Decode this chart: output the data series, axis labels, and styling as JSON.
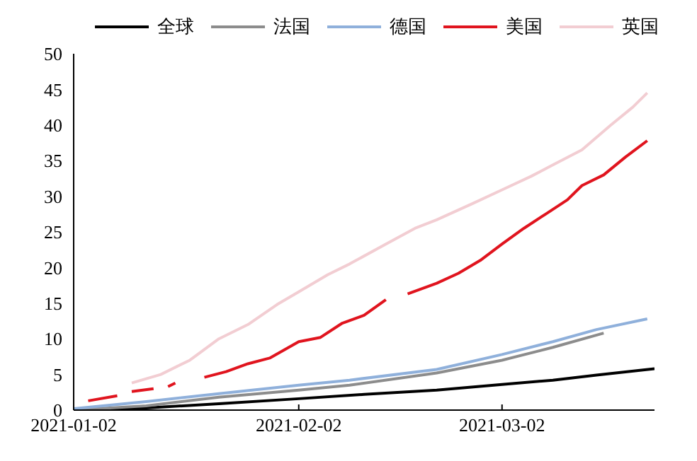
{
  "chart_data": {
    "type": "line",
    "xlim": [
      "2021-01-02",
      "2021-03-23"
    ],
    "xticks": [
      "2021-01-02",
      "2021-02-02",
      "2021-03-02"
    ],
    "ylim": [
      0,
      50
    ],
    "yticks": [
      0,
      5,
      10,
      15,
      20,
      25,
      30,
      35,
      40,
      45,
      50
    ],
    "grid": false,
    "legend": "top",
    "marker": "none",
    "line_style": "solid",
    "series": [
      {
        "name": "全球",
        "color": "#000000",
        "x": [
          "2021-01-02",
          "2021-01-12",
          "2021-01-22",
          "2021-02-02",
          "2021-02-11",
          "2021-02-21",
          "2021-03-02",
          "2021-03-09",
          "2021-03-15",
          "2021-03-23"
        ],
        "values": [
          0,
          0.3,
          0.9,
          1.6,
          2.2,
          2.8,
          3.6,
          4.2,
          4.9,
          5.8
        ]
      },
      {
        "name": "法国",
        "color": "#8c8c8c",
        "x": [
          "2021-01-02",
          "2021-01-12",
          "2021-01-22",
          "2021-02-02",
          "2021-02-09",
          "2021-02-21",
          "2021-03-02",
          "2021-03-09",
          "2021-03-16"
        ],
        "values": [
          0,
          0.6,
          1.8,
          2.8,
          3.5,
          5.2,
          7.0,
          8.8,
          10.8
        ]
      },
      {
        "name": "德国",
        "color": "#8fb0db",
        "x": [
          "2021-01-02",
          "2021-01-12",
          "2021-01-22",
          "2021-02-02",
          "2021-02-09",
          "2021-02-21",
          "2021-03-02",
          "2021-03-09",
          "2021-03-15",
          "2021-03-22"
        ],
        "values": [
          0.2,
          1.2,
          2.3,
          3.5,
          4.2,
          5.7,
          7.8,
          9.6,
          11.3,
          12.8
        ]
      },
      {
        "name": "美国",
        "color": "#e0141e",
        "x": [
          "2021-01-04",
          "2021-01-08",
          "2021-01-09",
          "2021-01-10",
          "2021-01-13",
          "2021-01-14",
          "2021-01-15",
          "2021-01-16",
          "2021-01-17",
          "2021-01-20",
          "2021-01-23",
          "2021-01-26",
          "2021-01-29",
          "2021-02-02",
          "2021-02-05",
          "2021-02-08",
          "2021-02-11",
          "2021-02-14",
          "2021-02-15",
          "2021-02-17",
          "2021-02-21",
          "2021-02-24",
          "2021-02-27",
          "2021-03-02",
          "2021-03-05",
          "2021-03-08",
          "2021-03-11",
          "2021-03-13",
          "2021-03-16",
          "2021-03-19",
          "2021-03-22"
        ],
        "values": [
          1.3,
          2.0,
          null,
          2.6,
          3.0,
          null,
          3.3,
          3.8,
          null,
          4.6,
          5.4,
          6.5,
          7.3,
          9.6,
          10.2,
          12.2,
          13.3,
          15.5,
          null,
          16.3,
          17.8,
          19.2,
          21.0,
          23.3,
          25.5,
          27.5,
          29.5,
          31.5,
          33.0,
          35.5,
          37.8
        ]
      },
      {
        "name": "英国",
        "color": "#f2cdd2",
        "x": [
          "2021-01-10",
          "2021-01-14",
          "2021-01-18",
          "2021-01-22",
          "2021-01-26",
          "2021-01-30",
          "2021-02-02",
          "2021-02-06",
          "2021-02-09",
          "2021-02-14",
          "2021-02-18",
          "2021-02-21",
          "2021-02-26",
          "2021-03-02",
          "2021-03-06",
          "2021-03-09",
          "2021-03-13",
          "2021-03-17",
          "2021-03-20",
          "2021-03-22"
        ],
        "values": [
          3.8,
          5.0,
          7.0,
          10.0,
          12.0,
          14.8,
          16.6,
          19.0,
          20.5,
          23.3,
          25.5,
          26.7,
          29.0,
          30.9,
          32.8,
          34.4,
          36.5,
          40.0,
          42.5,
          44.5
        ]
      }
    ]
  }
}
